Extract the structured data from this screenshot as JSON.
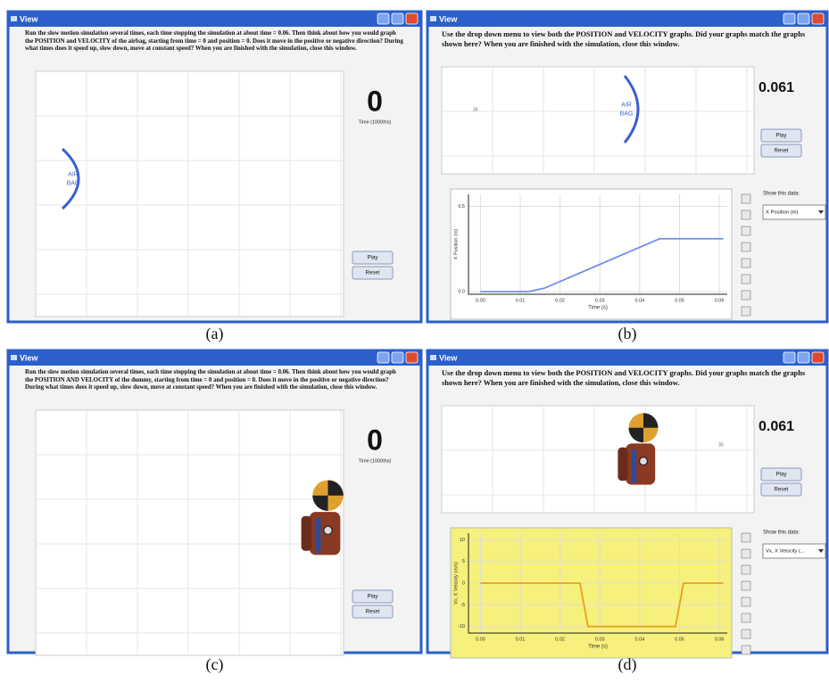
{
  "panels": [
    {
      "caption": "(a)",
      "window": {
        "title": "View",
        "instructions": "Run the slow motion simulation several times, each time stopping the simulation at about time = 0.06. Then think about how you would graph the POSITION and VELOCITY of the airbag, starting from time = 0 and position = 0. Does it move in the positive or negative direction? During what times does it speed up, slow down, move at constant speed? When you are finished with the simulation, close this window.",
        "counter": "0",
        "counter_caption": "Time (1000ths)",
        "buttons": [
          "Play",
          "Reset"
        ],
        "airbag": [
          "AIR",
          "BAG"
        ]
      }
    },
    {
      "caption": "(b)",
      "window": {
        "title": "View",
        "instructions": "Use the drop down menu to view both the POSITION and VELOCITY graphs. Did your graphs match the graphs shown here? When you are finished with the simulation, close this window.",
        "counter": "0.061",
        "buttons": [
          "Play",
          "Reset"
        ],
        "airbag": [
          "AIR",
          "BAG"
        ],
        "marker": "30",
        "data_label": "Show this data:",
        "dropdown": "X Position (m)",
        "chart_data": {
          "type": "line",
          "x_label": "Time (s)",
          "y_label": "X Position (m)",
          "x": [
            0,
            0.012,
            0.016,
            0.02,
            0.04,
            0.045,
            0.061
          ],
          "values": [
            0,
            0,
            0.02,
            0.06,
            0.26,
            0.31,
            0.31
          ],
          "color": "#6f8fe8",
          "background": "#ffffff",
          "xlim": [
            -0.003,
            0.062
          ],
          "ylim": [
            -0.015,
            0.57
          ],
          "xticks": [
            {
              "value": 0,
              "label": "0.00"
            },
            {
              "value": 0.01,
              "label": "0.01"
            },
            {
              "value": 0.02,
              "label": "0.02"
            },
            {
              "value": 0.03,
              "label": "0.03"
            },
            {
              "value": 0.04,
              "label": "0.04"
            },
            {
              "value": 0.05,
              "label": "0.05"
            },
            {
              "value": 0.06,
              "label": "0.06"
            }
          ],
          "yticks": [
            {
              "value": 0,
              "label": "0.0"
            },
            {
              "value": 0.5,
              "label": "0.5"
            }
          ],
          "grid": true
        }
      }
    },
    {
      "caption": "(c)",
      "window": {
        "title": "View",
        "instructions": "Run the slow motion simulation several times, each time stopping the simulation at about time = 0.06. Then think about how you would graph the POSITION AND VELOCITY of the dummy, starting from time = 0 and position = 0. Does it move in the positive or negative direction? During what times does it speed up, slow down, move at constant speed? When you are finished with the simulation, close this window.",
        "counter": "0",
        "counter_caption": "Time (1000ths)",
        "buttons": [
          "Play",
          "Reset"
        ]
      }
    },
    {
      "caption": "(d)",
      "window": {
        "title": "View",
        "instructions": "Use the drop down menu to view both the POSITION and VELOCITY graphs. Did your graphs match the graphs shown here? When you are finished with the simulation, close this window.",
        "counter": "0.061",
        "buttons": [
          "Play",
          "Reset"
        ],
        "marker": "30",
        "data_label": "Show this data:",
        "dropdown": "Vx, X Velocity (...",
        "chart_data": {
          "type": "line",
          "x_label": "Time (s)",
          "y_label": "Vx, X Velocity (m/s)",
          "x": [
            0,
            0.025,
            0.027,
            0.049,
            0.051,
            0.061
          ],
          "values": [
            0,
            0,
            -10,
            -10,
            0,
            0
          ],
          "color": "#e8a020",
          "background": "#f6f07c",
          "xlim": [
            -0.003,
            0.062
          ],
          "ylim": [
            -11.5,
            11.5
          ],
          "xticks": [
            {
              "value": 0,
              "label": "0.00"
            },
            {
              "value": 0.01,
              "label": "0.01"
            },
            {
              "value": 0.02,
              "label": "0.02"
            },
            {
              "value": 0.03,
              "label": "0.03"
            },
            {
              "value": 0.04,
              "label": "0.04"
            },
            {
              "value": 0.05,
              "label": "0.05"
            },
            {
              "value": 0.06,
              "label": "0.06"
            }
          ],
          "yticks": [
            -10,
            -5,
            0,
            5,
            10
          ],
          "grid": true
        }
      }
    }
  ]
}
